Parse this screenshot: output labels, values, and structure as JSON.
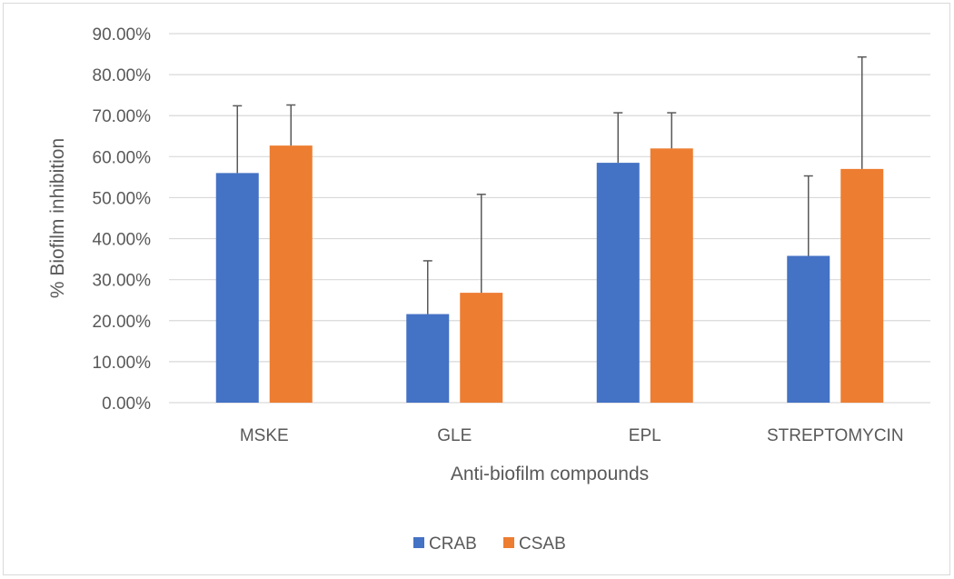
{
  "chart_data": {
    "type": "bar",
    "title": "",
    "xlabel": "Anti-biofilm compounds",
    "ylabel": "% Biofilm inhibition",
    "categories": [
      "MSKE",
      "GLE",
      "EPL",
      "STREPTOMYCIN"
    ],
    "series": [
      {
        "name": "CRAB",
        "color": "#4472c4",
        "values": [
          56.0,
          21.6,
          58.5,
          35.8
        ],
        "error_plus": [
          16.4,
          13.0,
          12.2,
          19.5
        ]
      },
      {
        "name": "CSAB",
        "color": "#ed7d31",
        "values": [
          62.7,
          26.8,
          62.0,
          57.0
        ],
        "error_plus": [
          9.9,
          24.0,
          8.7,
          27.3
        ]
      }
    ],
    "ylim": [
      0,
      90
    ],
    "yticks": [
      0,
      10,
      20,
      30,
      40,
      50,
      60,
      70,
      80,
      90
    ],
    "ytick_labels": [
      "0.00%",
      "10.00%",
      "20.00%",
      "30.00%",
      "40.00%",
      "50.00%",
      "60.00%",
      "70.00%",
      "80.00%",
      "90.00%"
    ],
    "grid": true,
    "legend_position": "bottom",
    "gridline_color": "#d9d9d9",
    "error_bar_color": "#595959"
  }
}
